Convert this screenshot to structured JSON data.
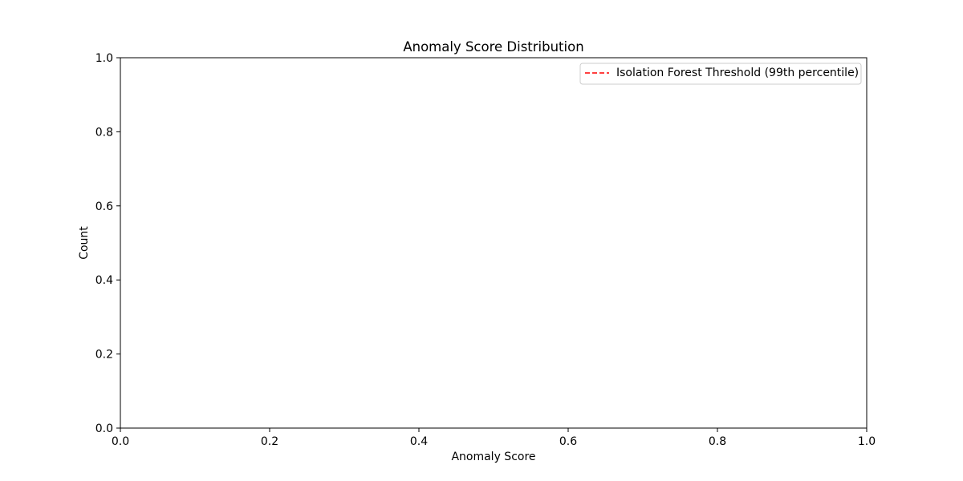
{
  "chart_data": {
    "type": "histogram",
    "title": "Anomaly Score Distribution",
    "xlabel": "Anomaly Score",
    "ylabel": "Count",
    "xlim": [
      0.0,
      1.0
    ],
    "ylim": [
      0.0,
      1.0
    ],
    "x_ticks": [
      "0.0",
      "0.2",
      "0.4",
      "0.6",
      "0.8",
      "1.0"
    ],
    "y_ticks": [
      "0.0",
      "0.2",
      "0.4",
      "0.6",
      "0.8",
      "1.0"
    ],
    "x_tick_values": [
      0.0,
      0.2,
      0.4,
      0.6,
      0.8,
      1.0
    ],
    "y_tick_values": [
      0.0,
      0.2,
      0.4,
      0.6,
      0.8,
      1.0
    ],
    "grid": false,
    "legend_position": "top-right",
    "series": [
      {
        "name": "Isolation Forest Threshold (99th percentile)",
        "kind": "vertical-line",
        "style": "dashed",
        "color": "#ff0000",
        "values": []
      }
    ]
  }
}
